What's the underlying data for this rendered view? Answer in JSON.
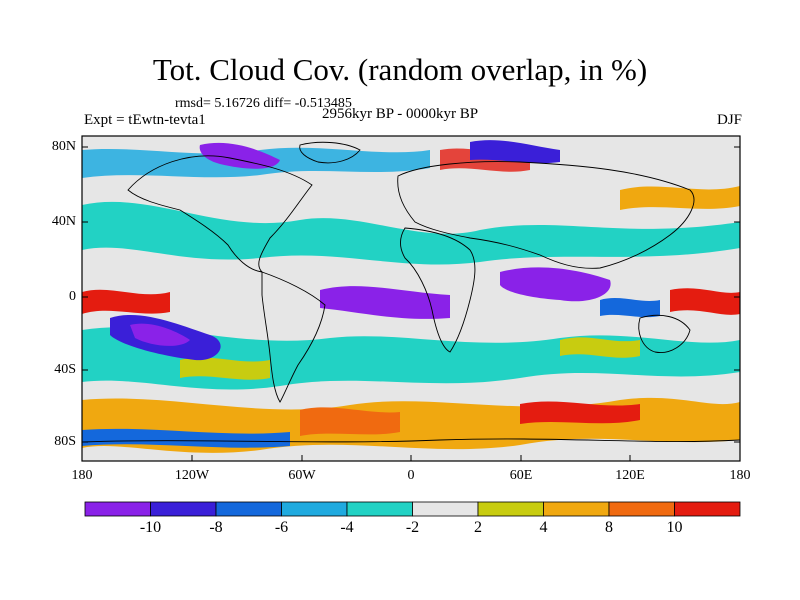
{
  "title": "Tot. Cloud Cov. (random overlap, in %)",
  "stats": "rmsd= 5.16726 diff= -0.513485",
  "experiment": "Expt = tEwtn-tevta1",
  "period": "2956kyr BP - 0000kyr BP",
  "season": "DJF",
  "axes": {
    "lat_ticks": [
      "80N",
      "40N",
      "0",
      "40S",
      "80S"
    ],
    "lon_ticks": [
      "180",
      "120W",
      "60W",
      "0",
      "60E",
      "120E",
      "180"
    ]
  },
  "colorbar": {
    "labels": [
      "-10",
      "-8",
      "-6",
      "-4",
      "-2",
      "2",
      "4",
      "8",
      "10"
    ],
    "colors": [
      "#8a22e8",
      "#3a1fd8",
      "#1468dc",
      "#1faadf",
      "#22d2c4",
      "#e6e6e6",
      "#c8cc10",
      "#f0a810",
      "#f06a10",
      "#e41c10"
    ]
  }
}
